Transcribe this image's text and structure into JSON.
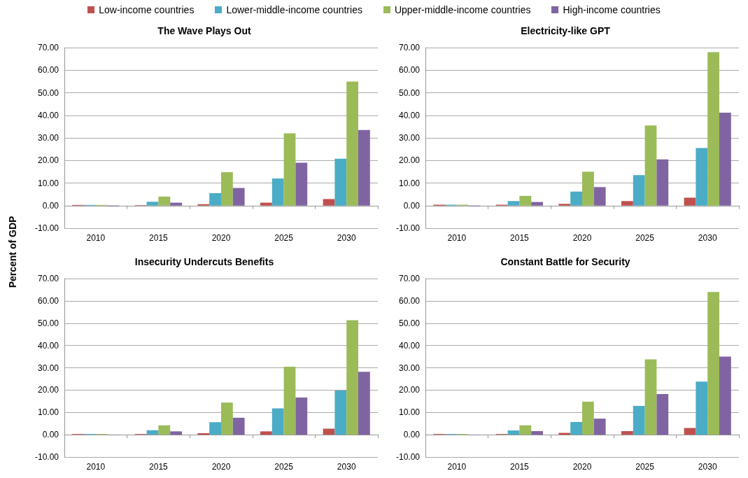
{
  "chart_data": [
    {
      "type": "bar",
      "title": "The Wave Plays Out",
      "ylabel": "Percent of GDP",
      "categories": [
        "2010",
        "2015",
        "2020",
        "2025",
        "2030"
      ],
      "ylim": [
        -10,
        70
      ],
      "yticks": [
        {
          "value": -10,
          "label": "-10.00"
        },
        {
          "value": 0,
          "label": "0.00"
        },
        {
          "value": 10,
          "label": "10.00"
        },
        {
          "value": 20,
          "label": "20.00"
        },
        {
          "value": 30,
          "label": "30.00"
        },
        {
          "value": 40,
          "label": "40.00"
        },
        {
          "value": 50,
          "label": "50.00"
        },
        {
          "value": 60,
          "label": "60.00"
        },
        {
          "value": 70,
          "label": "70.00"
        }
      ],
      "grid": "y",
      "legend": "top",
      "series": [
        {
          "name": "Low-income countries",
          "color": "#c0504d",
          "values": [
            0.3,
            0.2,
            0.6,
            1.3,
            2.9
          ]
        },
        {
          "name": "Lower-middle-income countries",
          "color": "#4bacc6",
          "values": [
            0.3,
            1.7,
            5.5,
            12.0,
            20.8
          ]
        },
        {
          "name": "Upper-middle-income countries",
          "color": "#9bbb59",
          "values": [
            0.3,
            4.0,
            14.8,
            32.0,
            55.0
          ]
        },
        {
          "name": "High-income countries",
          "color": "#8064a2",
          "values": [
            -0.4,
            1.3,
            7.8,
            19.0,
            33.5
          ]
        }
      ]
    },
    {
      "type": "bar",
      "title": "Electricity-like GPT",
      "categories": [
        "2010",
        "2015",
        "2020",
        "2025",
        "2030"
      ],
      "ylim": [
        -10,
        70
      ],
      "yticks": [
        {
          "value": -10,
          "label": "-10.00"
        },
        {
          "value": 0,
          "label": "0.00"
        },
        {
          "value": 10,
          "label": "10.00"
        },
        {
          "value": 20,
          "label": "20.00"
        },
        {
          "value": 30,
          "label": "30.00"
        },
        {
          "value": 40,
          "label": "40.00"
        },
        {
          "value": 50,
          "label": "50.00"
        },
        {
          "value": 60,
          "label": "60.00"
        },
        {
          "value": 70,
          "label": "70.00"
        }
      ],
      "grid": "y",
      "series": [
        {
          "color": "#c0504d",
          "values": [
            0.4,
            0.4,
            0.8,
            2.0,
            3.5
          ]
        },
        {
          "color": "#4bacc6",
          "values": [
            0.4,
            2.0,
            6.2,
            13.5,
            25.5
          ]
        },
        {
          "color": "#9bbb59",
          "values": [
            0.4,
            4.3,
            15.0,
            35.5,
            68.0
          ]
        },
        {
          "color": "#8064a2",
          "values": [
            -0.3,
            1.6,
            8.2,
            20.5,
            41.2
          ]
        }
      ]
    },
    {
      "type": "bar",
      "title": "Insecurity Undercuts Benefits",
      "categories": [
        "2010",
        "2015",
        "2020",
        "2025",
        "2030"
      ],
      "ylim": [
        -10,
        70
      ],
      "yticks": [
        {
          "value": -10,
          "label": "-10.00"
        },
        {
          "value": 0,
          "label": "0.00"
        },
        {
          "value": 10,
          "label": "10.00"
        },
        {
          "value": 20,
          "label": "20.00"
        },
        {
          "value": 30,
          "label": "30.00"
        },
        {
          "value": 40,
          "label": "40.00"
        },
        {
          "value": 50,
          "label": "50.00"
        },
        {
          "value": 60,
          "label": "60.00"
        },
        {
          "value": 70,
          "label": "70.00"
        }
      ],
      "grid": "y",
      "series": [
        {
          "color": "#c0504d",
          "values": [
            0.3,
            0.3,
            0.7,
            1.5,
            2.7
          ]
        },
        {
          "color": "#4bacc6",
          "values": [
            0.3,
            2.0,
            5.6,
            11.8,
            19.8
          ]
        },
        {
          "color": "#9bbb59",
          "values": [
            0.3,
            4.2,
            14.4,
            30.5,
            51.3
          ]
        },
        {
          "color": "#8064a2",
          "values": [
            -0.2,
            1.5,
            7.6,
            16.7,
            28.2
          ]
        }
      ]
    },
    {
      "type": "bar",
      "title": "Constant Battle for Security",
      "categories": [
        "2010",
        "2015",
        "2020",
        "2025",
        "2030"
      ],
      "ylim": [
        -10,
        70
      ],
      "yticks": [
        {
          "value": -10,
          "label": "-10.00"
        },
        {
          "value": 0,
          "label": "0.00"
        },
        {
          "value": 10,
          "label": "10.00"
        },
        {
          "value": 20,
          "label": "20.00"
        },
        {
          "value": 30,
          "label": "30.00"
        },
        {
          "value": 40,
          "label": "40.00"
        },
        {
          "value": 50,
          "label": "50.00"
        },
        {
          "value": 60,
          "label": "60.00"
        },
        {
          "value": 70,
          "label": "70.00"
        }
      ],
      "grid": "y",
      "series": [
        {
          "color": "#c0504d",
          "values": [
            0.3,
            0.3,
            0.8,
            1.6,
            3.0
          ]
        },
        {
          "color": "#4bacc6",
          "values": [
            0.3,
            1.9,
            5.7,
            12.9,
            23.8
          ]
        },
        {
          "color": "#9bbb59",
          "values": [
            0.3,
            4.2,
            14.8,
            33.8,
            64.0
          ]
        },
        {
          "color": "#8064a2",
          "values": [
            -0.2,
            1.6,
            7.2,
            18.2,
            35.0
          ]
        }
      ]
    }
  ]
}
